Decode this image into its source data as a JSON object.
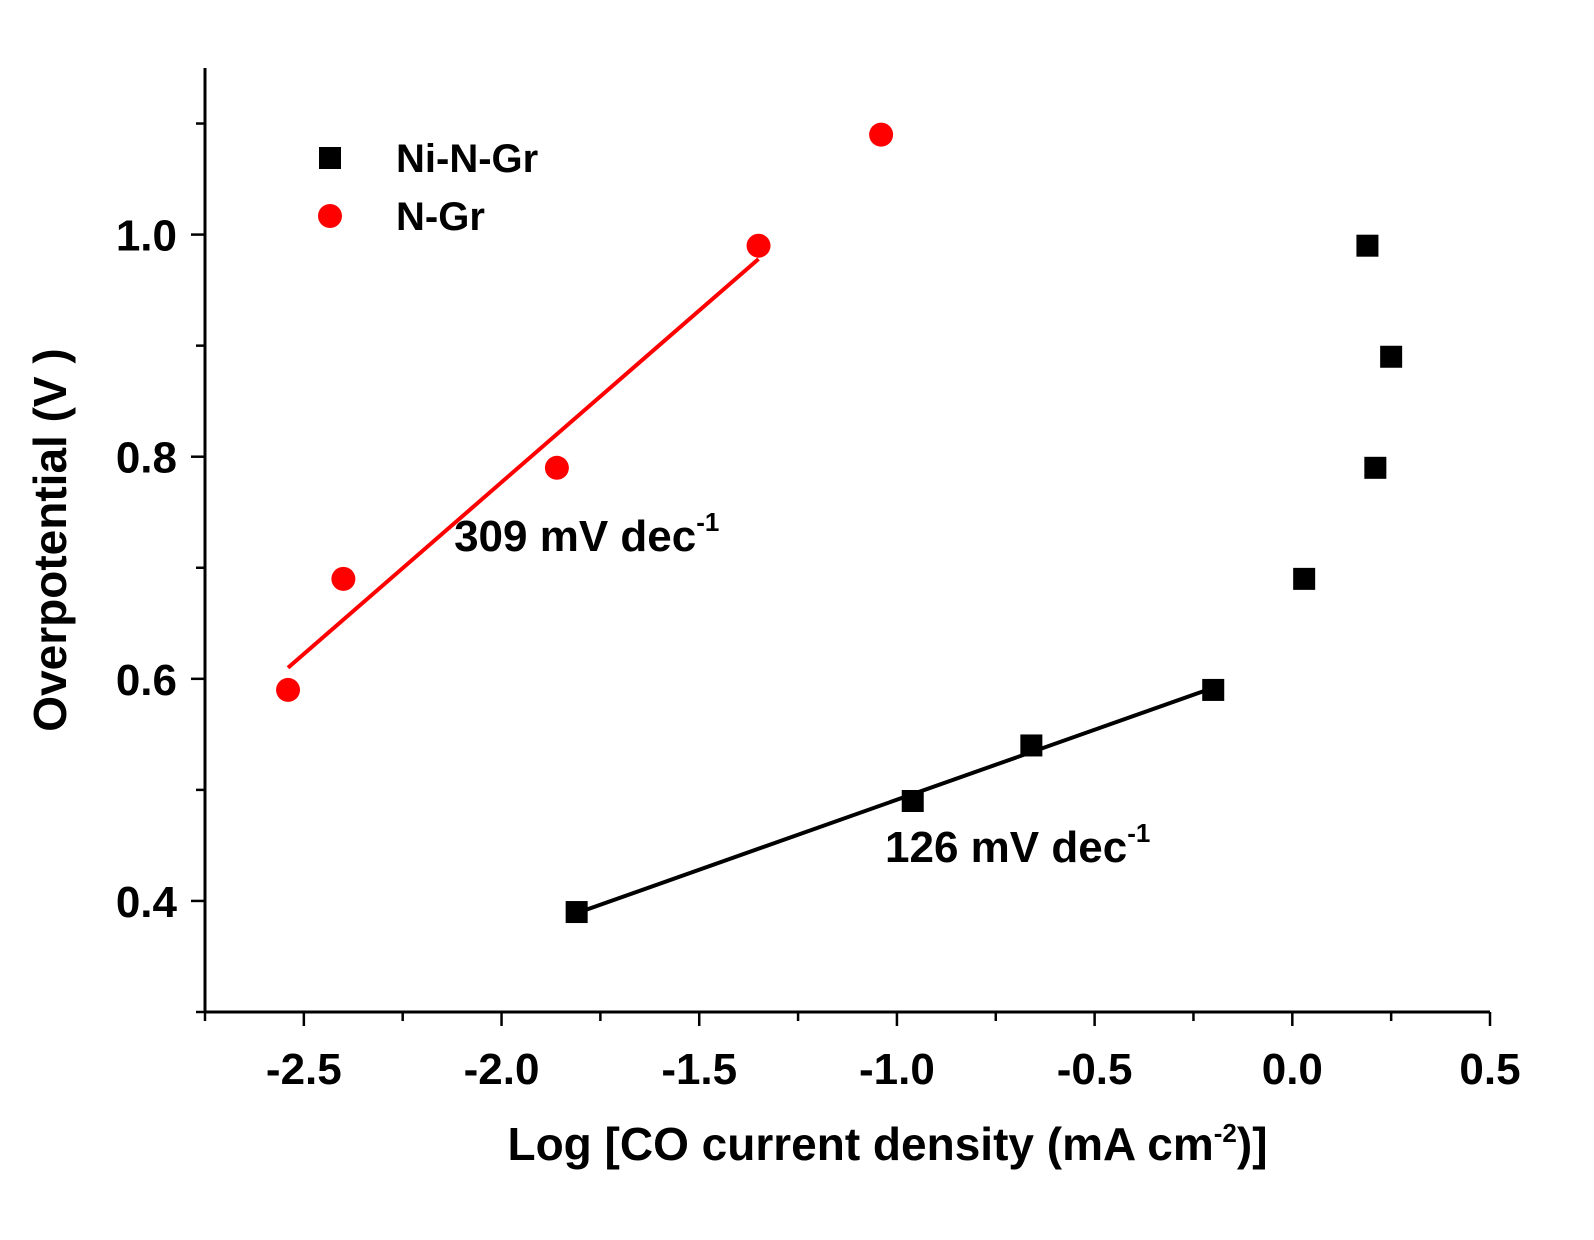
{
  "chart_data": {
    "type": "scatter",
    "xlabel": "Log [CO current density (mA cm",
    "xlabel_sup": "-2",
    "xlabel_end": ")]",
    "ylabel": "Overpotential (V )",
    "xlim": [
      -2.75,
      0.5
    ],
    "ylim": [
      0.3,
      1.15
    ],
    "x_ticks": [
      -2.5,
      -2.0,
      -1.5,
      -1.0,
      -0.5,
      0.0,
      0.5
    ],
    "x_tick_labels": [
      "-2.5",
      "-2.0",
      "-1.5",
      "-1.0",
      "-0.5",
      "0.0",
      "0.5"
    ],
    "y_ticks": [
      0.4,
      0.6,
      0.8,
      1.0
    ],
    "y_tick_labels": [
      "0.4",
      "0.6",
      "0.8",
      "1.0"
    ],
    "legend_position": "top-left",
    "grid": false,
    "series": [
      {
        "name": "Ni-N-Gr",
        "marker": "square",
        "color": "#000000",
        "points": [
          {
            "x": -1.81,
            "y": 0.39
          },
          {
            "x": -0.96,
            "y": 0.49
          },
          {
            "x": -0.66,
            "y": 0.54
          },
          {
            "x": -0.2,
            "y": 0.59
          },
          {
            "x": 0.03,
            "y": 0.69
          },
          {
            "x": 0.21,
            "y": 0.79
          },
          {
            "x": 0.25,
            "y": 0.89
          },
          {
            "x": 0.19,
            "y": 0.99
          }
        ],
        "fit": {
          "x": [
            -1.81,
            -0.2
          ],
          "y": [
            0.389,
            0.592
          ]
        },
        "annotation": {
          "text": "126 mV dec",
          "sup": "-1",
          "x": -1.03,
          "y": 0.435
        }
      },
      {
        "name": "N-Gr",
        "marker": "circle",
        "color": "#ff0000",
        "points": [
          {
            "x": -2.54,
            "y": 0.59
          },
          {
            "x": -2.4,
            "y": 0.69
          },
          {
            "x": -1.86,
            "y": 0.79
          },
          {
            "x": -1.35,
            "y": 0.99
          },
          {
            "x": -1.04,
            "y": 1.09
          }
        ],
        "fit": {
          "x": [
            -2.54,
            -1.35
          ],
          "y": [
            0.61,
            0.978
          ]
        },
        "annotation": {
          "text": "309 mV dec",
          "sup": "-1",
          "x": -2.12,
          "y": 0.715
        }
      }
    ]
  }
}
